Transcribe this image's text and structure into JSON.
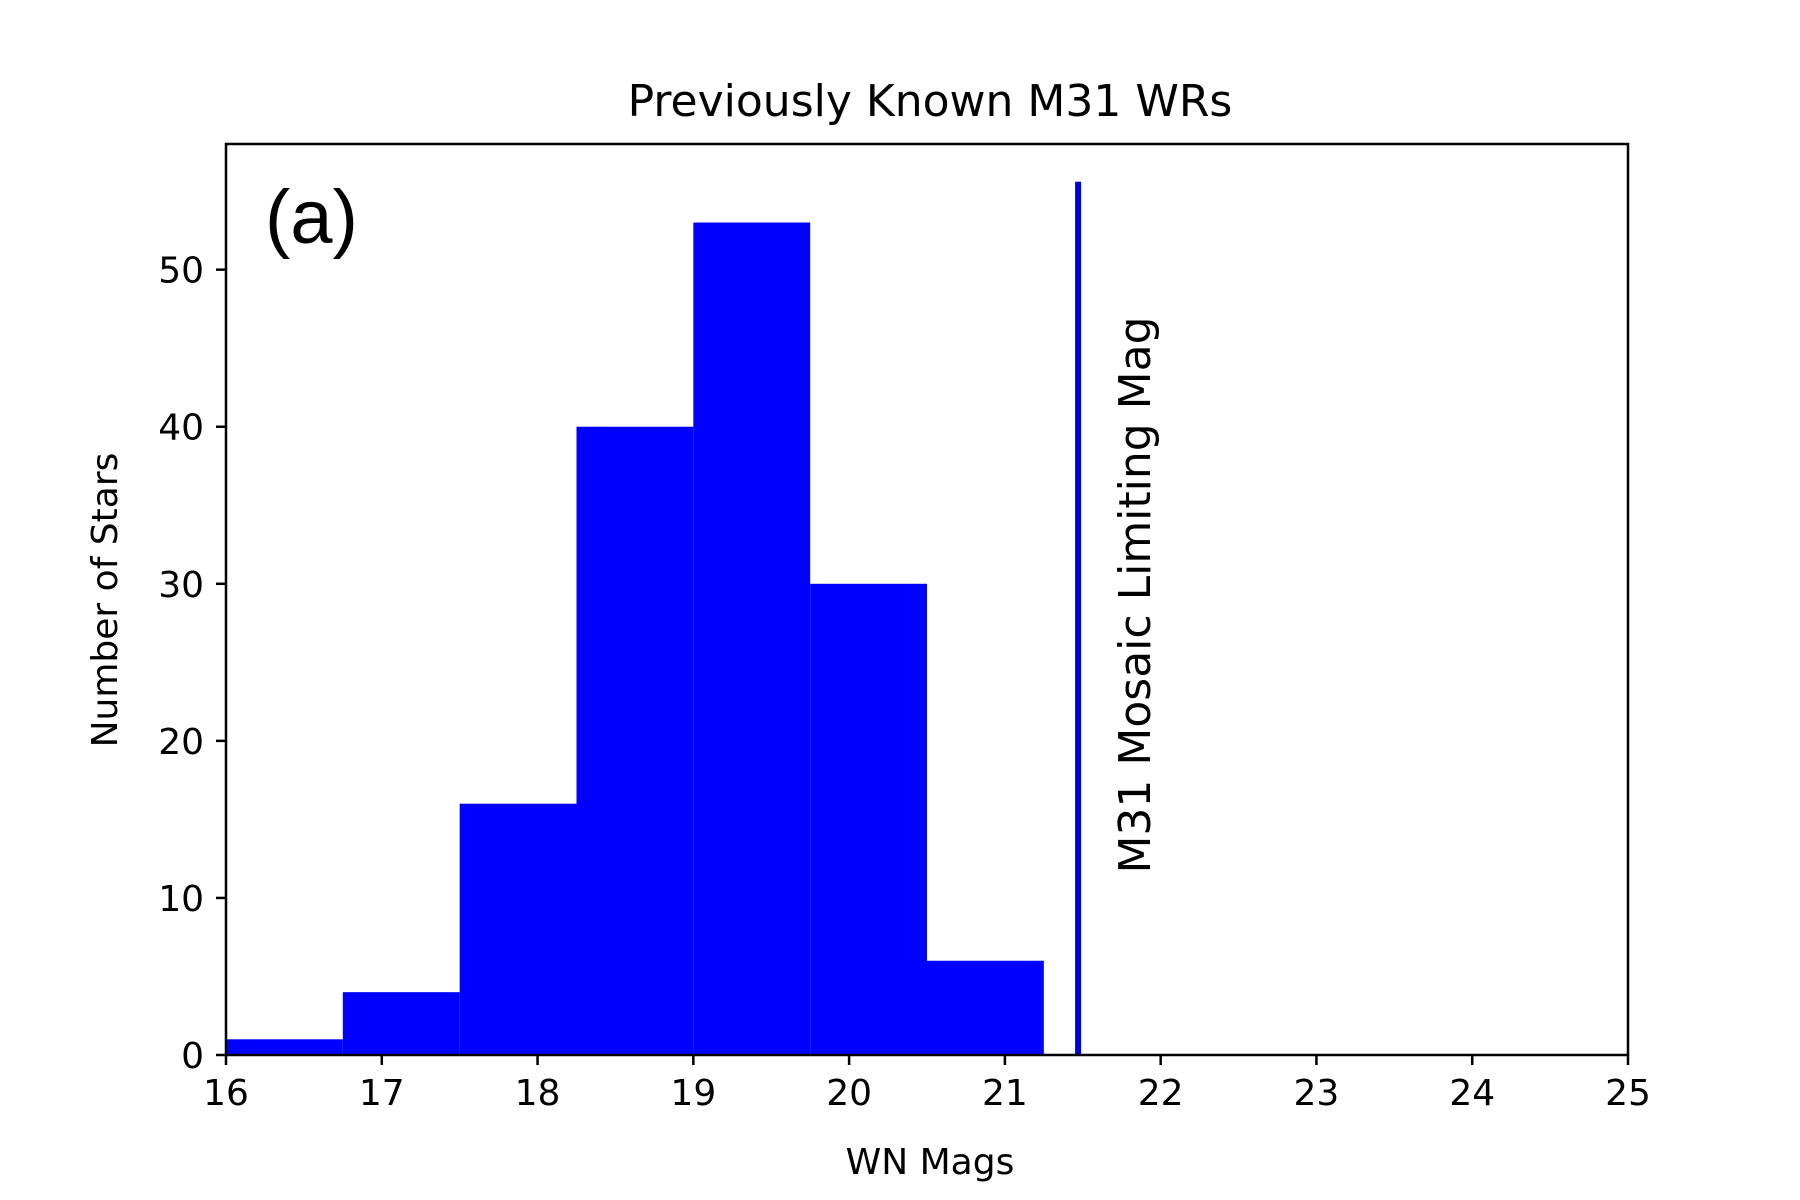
{
  "chart_data": {
    "type": "bar",
    "title": "Previously Known M31 WRs",
    "xlabel": "WN Mags",
    "ylabel": "Number of Stars",
    "panel_label": "(a)",
    "xlim": [
      16,
      25
    ],
    "ylim": [
      0,
      58
    ],
    "xticks": [
      16,
      17,
      18,
      19,
      20,
      21,
      22,
      23,
      24,
      25
    ],
    "yticks": [
      0,
      10,
      20,
      30,
      40,
      50
    ],
    "grid": false,
    "bar_color": "#0000ff",
    "bins": [
      {
        "x0": 16.0,
        "x1": 16.75,
        "count": 1
      },
      {
        "x0": 16.75,
        "x1": 17.5,
        "count": 4
      },
      {
        "x0": 17.5,
        "x1": 18.25,
        "count": 16
      },
      {
        "x0": 18.25,
        "x1": 19.0,
        "count": 40
      },
      {
        "x0": 19.0,
        "x1": 19.75,
        "count": 53
      },
      {
        "x0": 19.75,
        "x1": 20.5,
        "count": 30
      },
      {
        "x0": 20.5,
        "x1": 21.25,
        "count": 6
      }
    ],
    "limit_line": {
      "x": 21.47,
      "y_top": 55.6,
      "label": "M31 Mosaic Limiting Mag",
      "color": "#0000dd"
    }
  }
}
